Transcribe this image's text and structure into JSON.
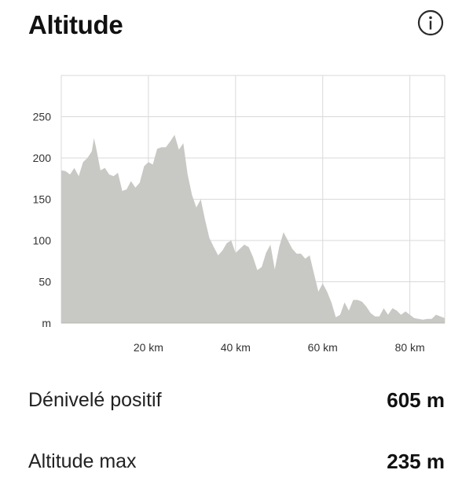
{
  "header": {
    "title": "Altitude",
    "info_icon": "info-circle-icon"
  },
  "stats": [
    {
      "label": "Dénivelé positif",
      "value": "605 m"
    },
    {
      "label": "Altitude max",
      "value": "235 m"
    }
  ],
  "chart_data": {
    "type": "area",
    "title": "",
    "xlabel": "",
    "ylabel": "",
    "x_unit": "km",
    "xlim": [
      0,
      88
    ],
    "ylim": [
      0,
      300
    ],
    "x_ticks": [
      20,
      40,
      60,
      80
    ],
    "x_tick_labels": [
      "20 km",
      "40 km",
      "60 km",
      "80 km"
    ],
    "y_ticks": [
      0,
      50,
      100,
      150,
      200,
      250
    ],
    "y_tick_labels": [
      "m",
      "50",
      "100",
      "150",
      "200",
      "250"
    ],
    "grid": true,
    "fill_color": "#c8c8c4",
    "grid_color": "#d9d9d9",
    "series": [
      {
        "x": [
          0,
          1,
          2,
          3,
          4,
          5,
          6,
          7,
          7.5,
          8,
          9,
          10,
          11,
          12,
          13,
          14,
          15,
          16,
          17,
          18,
          19,
          20,
          21,
          22,
          23,
          24,
          25,
          26,
          27,
          28,
          29,
          30,
          31,
          32,
          33,
          34,
          35,
          36,
          37,
          38,
          39,
          40,
          41,
          42,
          43,
          44,
          45,
          46,
          47,
          48,
          49,
          50,
          51,
          52,
          53,
          54,
          55,
          56,
          57,
          58,
          59,
          60,
          61,
          62,
          63,
          64,
          65,
          66,
          67,
          68,
          69,
          70,
          71,
          72,
          73,
          74,
          75,
          76,
          77,
          78,
          79,
          80,
          81,
          82,
          83,
          84,
          85,
          86,
          87,
          88
        ],
        "y": [
          185,
          184,
          180,
          188,
          178,
          195,
          200,
          208,
          224,
          212,
          185,
          188,
          180,
          178,
          182,
          160,
          162,
          172,
          164,
          170,
          190,
          195,
          192,
          211,
          213,
          213,
          220,
          228,
          210,
          218,
          180,
          155,
          140,
          150,
          125,
          103,
          92,
          82,
          88,
          97,
          100,
          85,
          90,
          95,
          92,
          80,
          64,
          68,
          85,
          95,
          65,
          92,
          110,
          100,
          90,
          84,
          84,
          78,
          82,
          60,
          38,
          48,
          38,
          25,
          7,
          10,
          25,
          15,
          28,
          28,
          26,
          20,
          12,
          8,
          8,
          18,
          10,
          18,
          15,
          10,
          14,
          10,
          6,
          5,
          4,
          5,
          5,
          10,
          8,
          6
        ]
      }
    ]
  }
}
